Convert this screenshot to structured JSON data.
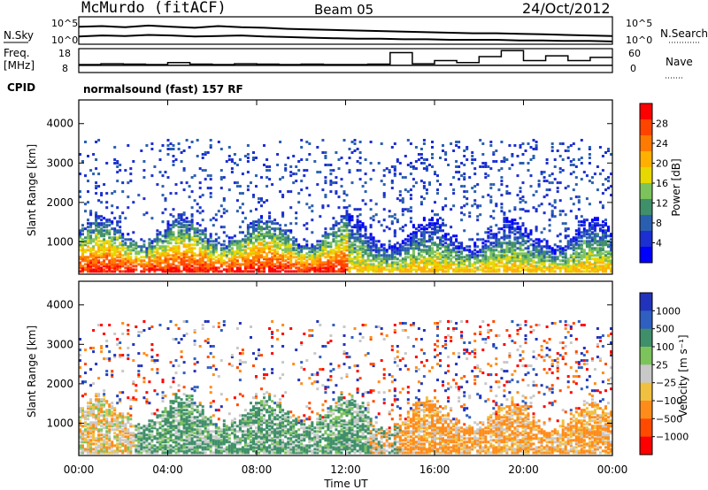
{
  "header": {
    "station": "McMurdo (fitACF)",
    "beam": "Beam 05",
    "date": "24/Oct/2012",
    "mode": "normalsound (fast) 157 RF"
  },
  "panel_labels": {
    "nsky": "N.Sky",
    "freq_line1": "Freq.",
    "freq_line2": "[MHz]",
    "cpid": "CPID",
    "nsearch": "N.Search",
    "nave": "Nave"
  },
  "chart_data": [
    {
      "type": "line",
      "id": "noise",
      "ylabel_left": "N.Sky",
      "ylabel_right": "N.Search",
      "log_scale": true,
      "left_ticks": [
        "10^5",
        "10^0"
      ],
      "right_ticks": [
        "10^5",
        "10^0"
      ],
      "series": [
        {
          "values": [
            3.2,
            3.3,
            3.1,
            3.4,
            3.2,
            3.0,
            3.3,
            3.1,
            3.0,
            2.8,
            2.7,
            2.6,
            2.5,
            2.4,
            2.3,
            2.2,
            2.1,
            2.0,
            2.0,
            1.9,
            1.8,
            1.7,
            1.6,
            1.5
          ]
        },
        {
          "values": [
            1.4,
            1.6,
            1.5,
            1.7,
            1.6,
            1.4,
            1.5,
            1.6,
            1.4,
            1.3,
            1.2,
            1.1,
            1.0,
            1.0,
            0.9,
            0.9,
            0.8,
            0.8,
            0.8,
            0.7,
            0.7,
            0.6,
            0.6,
            0.5
          ]
        }
      ]
    },
    {
      "type": "line",
      "id": "freq_nave",
      "ylabel_left": "Freq. [MHz]",
      "ylabel_right": "Nave",
      "left_ticks": [
        "18",
        "8"
      ],
      "right_ticks": [
        "60",
        "0"
      ],
      "series": [
        {
          "values": [
            11,
            11,
            11,
            11,
            11,
            11,
            11,
            11,
            11,
            11,
            11,
            11,
            11,
            11,
            11,
            11,
            11,
            11,
            11,
            11,
            11,
            11,
            11,
            11
          ]
        },
        {
          "values": [
            20,
            22,
            21,
            20,
            25,
            21,
            20,
            22,
            21,
            20,
            21,
            20,
            20,
            21,
            50,
            22,
            30,
            25,
            40,
            55,
            30,
            42,
            30,
            38
          ]
        }
      ]
    },
    {
      "type": "heatmap",
      "id": "power",
      "ylabel": "Slant Range [km]",
      "yticks": [
        1000,
        2000,
        3000,
        4000
      ],
      "ylim": [
        180,
        4600
      ],
      "xlim": [
        0,
        24
      ],
      "colorbar_label": "Power [dB]",
      "colorbar_ticks": [
        "28",
        "24",
        "20",
        "16",
        "12",
        "8",
        "4"
      ],
      "colorbar_colors": [
        "#ff0000",
        "#ff4400",
        "#ff7a00",
        "#ffb000",
        "#e6d800",
        "#7cc35c",
        "#3f8f6a",
        "#2a5fb0",
        "#1c2fd0",
        "#0000ff"
      ]
    },
    {
      "type": "heatmap",
      "id": "velocity",
      "ylabel": "Slant Range [km]",
      "yticks": [
        1000,
        2000,
        3000,
        4000
      ],
      "ylim": [
        180,
        4600
      ],
      "xlim": [
        0,
        24
      ],
      "xticks": [
        "00:00",
        "04:00",
        "08:00",
        "12:00",
        "16:00",
        "20:00",
        "00:00"
      ],
      "xlabel": "Time UT",
      "colorbar_label": "Velocity [m s⁻¹]",
      "colorbar_ticks": [
        "1000",
        "500",
        "100",
        "25",
        "−25",
        "−100",
        "−500",
        "−1000"
      ],
      "colorbar_colors": [
        "#2233bb",
        "#2f5fc0",
        "#3f8f6a",
        "#7cc35c",
        "#c8c8c8",
        "#f0c040",
        "#ff8c1a",
        "#ff4a00",
        "#ff0000"
      ]
    }
  ]
}
